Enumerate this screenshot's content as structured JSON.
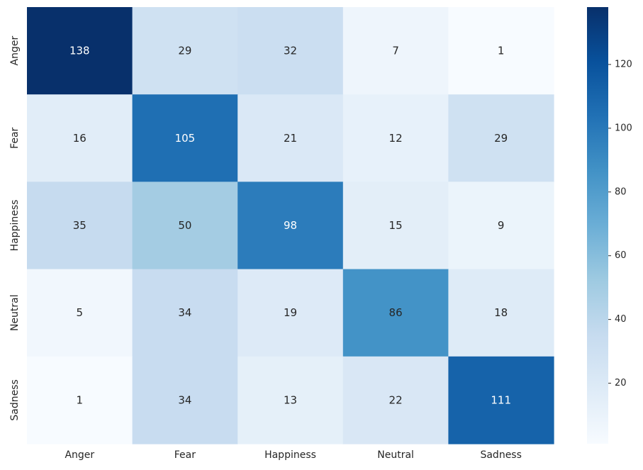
{
  "chart_data": {
    "type": "heatmap",
    "title": "",
    "xlabel": "",
    "ylabel": "",
    "x_categories": [
      "Anger",
      "Fear",
      "Happiness",
      "Neutral",
      "Sadness"
    ],
    "y_categories": [
      "Anger",
      "Fear",
      "Happiness",
      "Neutral",
      "Sadness"
    ],
    "values": [
      [
        138,
        29,
        32,
        7,
        1
      ],
      [
        16,
        105,
        21,
        12,
        29
      ],
      [
        35,
        50,
        98,
        15,
        9
      ],
      [
        5,
        34,
        19,
        86,
        18
      ],
      [
        1,
        34,
        13,
        22,
        111
      ]
    ],
    "colormap": "Blues",
    "colorbar": {
      "range": [
        1,
        138
      ],
      "ticks": [
        20,
        40,
        60,
        80,
        100,
        120
      ],
      "placement": "right"
    },
    "grid": false
  }
}
